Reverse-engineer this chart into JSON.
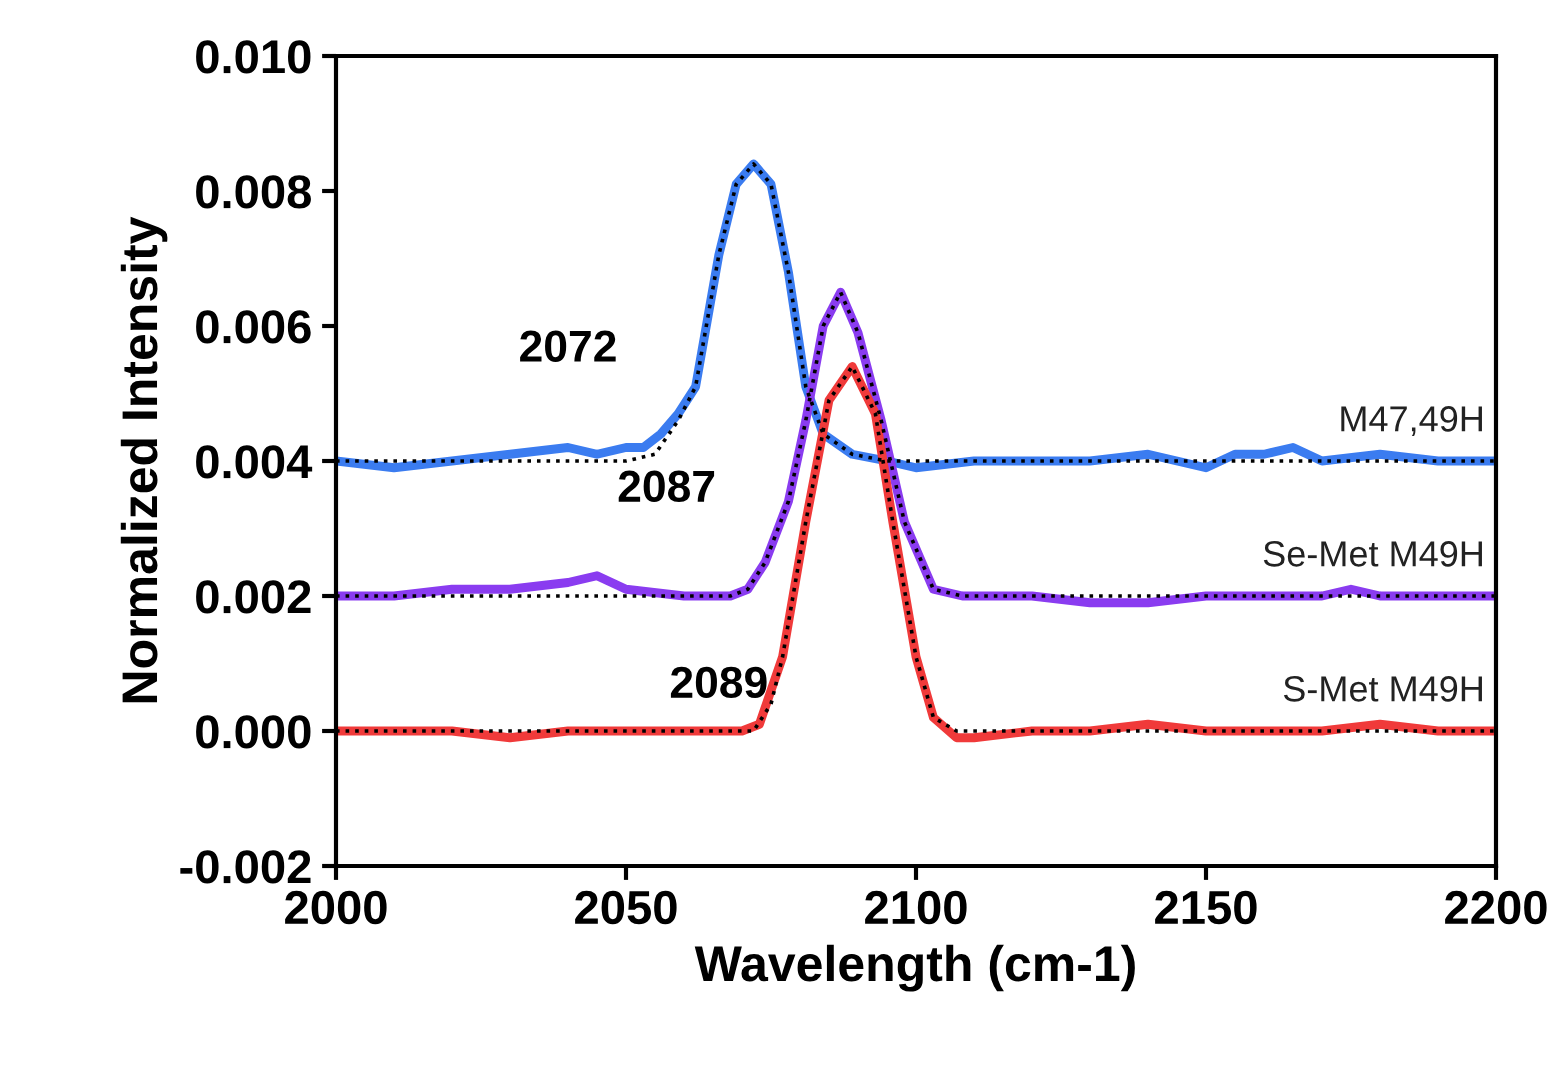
{
  "chart_data": {
    "type": "line",
    "xlabel": "Wavelength (cm-1)",
    "ylabel": "Normalized Intensity",
    "xlim": [
      2000,
      2200
    ],
    "xticks": [
      2000,
      2050,
      2100,
      2150,
      2200
    ],
    "ylim": [
      -0.002,
      0.01
    ],
    "yticks": [
      {
        "value": -0.002,
        "label": "-0.002"
      },
      {
        "value": 0,
        "label": "0.000"
      },
      {
        "value": 0.002,
        "label": "0.002"
      },
      {
        "value": 0.004,
        "label": "0.004"
      },
      {
        "value": 0.006,
        "label": "0.006"
      },
      {
        "value": 0.008,
        "label": "0.008"
      },
      {
        "value": 0.01,
        "label": "0.010"
      }
    ],
    "grid": false,
    "legend": false,
    "marker": "none",
    "line_style": "solid",
    "annotations": [
      "2072",
      "2087",
      "2089"
    ],
    "series": [
      {
        "name": "M47,49H",
        "color": "#3b7cf0",
        "x": [
          2000,
          2010,
          2020,
          2030,
          2040,
          2045,
          2050,
          2053,
          2056,
          2059,
          2062,
          2066,
          2069,
          2072,
          2075,
          2078,
          2081,
          2084,
          2089,
          2095,
          2100,
          2110,
          2120,
          2130,
          2140,
          2150,
          2155,
          2160,
          2165,
          2170,
          2180,
          2190,
          2200
        ],
        "values": [
          0.004,
          0.0039,
          0.004,
          0.0041,
          0.0042,
          0.0041,
          0.0042,
          0.0042,
          0.0044,
          0.0047,
          0.0051,
          0.00705,
          0.0081,
          0.0084,
          0.0081,
          0.0068,
          0.0051,
          0.0044,
          0.0041,
          0.004,
          0.0039,
          0.004,
          0.004,
          0.004,
          0.0041,
          0.0039,
          0.0041,
          0.0041,
          0.0042,
          0.004,
          0.0041,
          0.004,
          0.004
        ]
      },
      {
        "name": "Se-Met M49H",
        "color": "#8a3cf0",
        "x": [
          2000,
          2010,
          2020,
          2030,
          2040,
          2045,
          2050,
          2060,
          2068,
          2071,
          2074,
          2078,
          2081,
          2084,
          2087,
          2090,
          2094,
          2098,
          2103,
          2108,
          2120,
          2130,
          2140,
          2150,
          2160,
          2170,
          2175,
          2180,
          2190,
          2200
        ],
        "values": [
          0.002,
          0.002,
          0.0021,
          0.0021,
          0.0022,
          0.0023,
          0.0021,
          0.002,
          0.002,
          0.0021,
          0.0025,
          0.0034,
          0.0046,
          0.006,
          0.0065,
          0.0059,
          0.0046,
          0.0031,
          0.0021,
          0.002,
          0.002,
          0.0019,
          0.0019,
          0.002,
          0.002,
          0.002,
          0.0021,
          0.002,
          0.002,
          0.002
        ]
      },
      {
        "name": "S-Met M49H",
        "color": "#f03a3a",
        "x": [
          2000,
          2010,
          2020,
          2030,
          2040,
          2050,
          2060,
          2070,
          2073,
          2077,
          2081,
          2085,
          2089,
          2093,
          2096,
          2100,
          2103,
          2107,
          2110,
          2120,
          2130,
          2140,
          2150,
          2160,
          2170,
          2180,
          2190,
          2200
        ],
        "values": [
          0.0,
          0.0,
          0.0,
          -0.0001,
          0.0,
          0.0,
          0.0,
          0.0,
          0.0001,
          0.0011,
          0.0031,
          0.0049,
          0.0054,
          0.0047,
          0.0031,
          0.0011,
          0.0002,
          -0.0001,
          -0.0001,
          0.0,
          0.0,
          0.0001,
          0.0,
          0.0,
          0.0,
          0.0001,
          0.0,
          0.0
        ]
      },
      {
        "color": "#000000",
        "line_style": "dotted",
        "x": [
          2000,
          2050,
          2055,
          2059,
          2062,
          2066,
          2069,
          2072,
          2075,
          2078,
          2081,
          2084,
          2089,
          2095,
          2200
        ],
        "values": [
          0.004,
          0.004,
          0.0041,
          0.0046,
          0.0051,
          0.00705,
          0.0081,
          0.0084,
          0.0081,
          0.0068,
          0.0051,
          0.0044,
          0.0041,
          0.004,
          0.004
        ]
      },
      {
        "color": "#000000",
        "line_style": "dotted",
        "x": [
          2000,
          2068,
          2071,
          2074,
          2078,
          2081,
          2084,
          2087,
          2090,
          2094,
          2098,
          2103,
          2108,
          2200
        ],
        "values": [
          0.002,
          0.002,
          0.0021,
          0.0025,
          0.0034,
          0.0046,
          0.006,
          0.0065,
          0.0059,
          0.0046,
          0.0031,
          0.0021,
          0.002,
          0.002
        ]
      },
      {
        "color": "#000000",
        "line_style": "dotted",
        "x": [
          2000,
          2072,
          2075,
          2077,
          2081,
          2085,
          2089,
          2093,
          2096,
          2100,
          2103,
          2107,
          2200
        ],
        "values": [
          0.0,
          0.0,
          0.0004,
          0.0011,
          0.0031,
          0.0049,
          0.0054,
          0.0047,
          0.0031,
          0.0011,
          0.0002,
          0.0,
          0.0
        ]
      }
    ]
  }
}
